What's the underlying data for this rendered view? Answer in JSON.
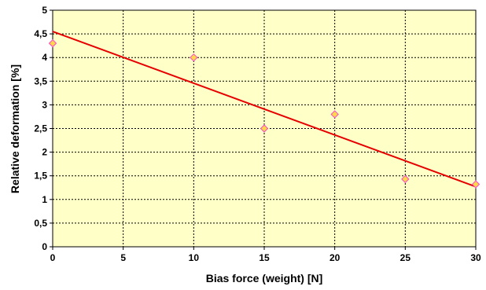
{
  "chart_data": {
    "type": "scatter",
    "title": "",
    "xlabel": "Bias force (weight) [N]",
    "ylabel": "Relative deformation [%]",
    "xlim": [
      0,
      30
    ],
    "ylim": [
      0,
      5
    ],
    "x_ticks": [
      0,
      5,
      10,
      15,
      20,
      25,
      30
    ],
    "y_ticks": [
      0,
      0.5,
      1,
      1.5,
      2,
      2.5,
      3,
      3.5,
      4,
      4.5,
      5
    ],
    "x_tick_labels": [
      "0",
      "5",
      "10",
      "15",
      "20",
      "25",
      "30"
    ],
    "y_tick_labels": [
      "0",
      "0,5",
      "1",
      "1,5",
      "2",
      "2,5",
      "3",
      "3,5",
      "4",
      "4,5",
      "5"
    ],
    "grid": true,
    "legend": "none",
    "series": [
      {
        "values": [
          {
            "x": 0,
            "y": 4.3
          },
          {
            "x": 10,
            "y": 4.0
          },
          {
            "x": 15,
            "y": 2.5
          },
          {
            "x": 20,
            "y": 2.8
          },
          {
            "x": 25,
            "y": 1.43
          },
          {
            "x": 30,
            "y": 1.32
          }
        ],
        "marker": "diamond",
        "marker_fill": "#ffd84a",
        "marker_stroke": "#ff44cc"
      }
    ],
    "trendline": {
      "type": "linear",
      "points": [
        {
          "x": 0,
          "y": 4.55
        },
        {
          "x": 30,
          "y": 1.27
        }
      ],
      "color": "#e60000"
    },
    "colors": {
      "plot_background": "#ffffc8",
      "grid": "#000000"
    }
  }
}
